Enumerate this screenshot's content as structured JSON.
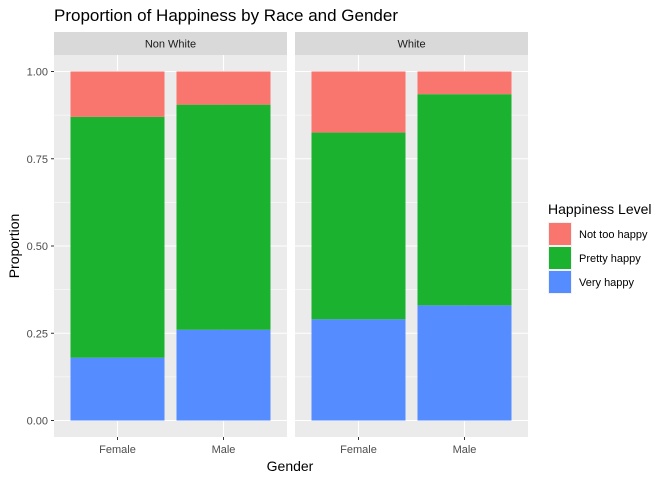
{
  "chart_data": {
    "type": "bar",
    "stacked": true,
    "position": "fill",
    "title": "Proportion of Happiness by Race and Gender",
    "xlabel": "Gender",
    "ylabel": "Proportion",
    "ylim": [
      0,
      1
    ],
    "yticks": [
      "0.00",
      "0.25",
      "0.50",
      "0.75",
      "1.00"
    ],
    "categories": [
      "Female",
      "Male"
    ],
    "facets": [
      {
        "label": "Non White",
        "series": [
          {
            "name": "Very happy",
            "values": [
              0.18,
              0.26
            ]
          },
          {
            "name": "Pretty happy",
            "values": [
              0.69,
              0.645
            ]
          },
          {
            "name": "Not too happy",
            "values": [
              0.13,
              0.095
            ]
          }
        ]
      },
      {
        "label": "White",
        "series": [
          {
            "name": "Very happy",
            "values": [
              0.29,
              0.33
            ]
          },
          {
            "name": "Pretty happy",
            "values": [
              0.535,
              0.605
            ]
          },
          {
            "name": "Not too happy",
            "values": [
              0.175,
              0.065
            ]
          }
        ]
      }
    ],
    "legend": {
      "title": "Happiness Level",
      "placement": "right",
      "items": [
        {
          "name": "Not too happy",
          "color": "#F8766D"
        },
        {
          "name": "Pretty happy",
          "color": "#1AB22F"
        },
        {
          "name": "Very happy",
          "color": "#558CFF"
        }
      ]
    },
    "colors": {
      "Very happy": "#558CFF",
      "Pretty happy": "#1AB22F",
      "Not too happy": "#F8766D",
      "panel_background": "#EBEBEB",
      "strip_background": "#D9D9D9",
      "grid": "#FFFFFF"
    },
    "grid": true
  }
}
